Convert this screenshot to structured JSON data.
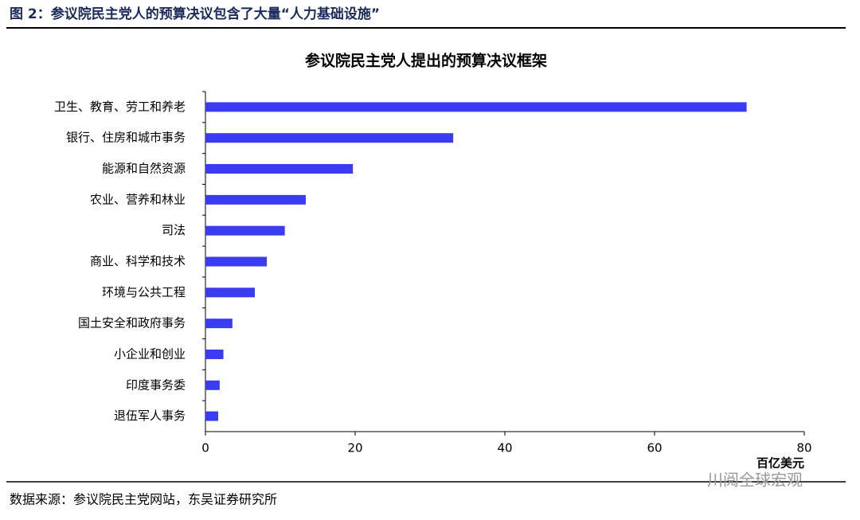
{
  "header": {
    "title": "图 2：参议院民主党人的预算决议包含了大量“人力基础设施”"
  },
  "chart_data": {
    "type": "hbar",
    "title": "参议院民主党人提出的预算决议框架",
    "categories": [
      "卫生、教育、劳工和养老",
      "银行、住房和城市事务",
      "能源和自然资源",
      "农业、营养和林业",
      "司法",
      "商业、科学和技术",
      "环境与公共工程",
      "国土安全和政府事务",
      "小企业和创业",
      "印度事务委",
      "退伍军人事务"
    ],
    "values": [
      72.3,
      33.1,
      19.7,
      13.4,
      10.6,
      8.2,
      6.6,
      3.6,
      2.4,
      1.9,
      1.7
    ],
    "color": "#3b3bf2",
    "xlim": [
      0,
      80
    ],
    "xticks": [
      0,
      20,
      40,
      60,
      80
    ],
    "x_label": "百亿美元"
  },
  "footer": {
    "source": "数据来源：参议院民主党网站，东吴证券研究所",
    "watermark": "川阅全球宏观"
  }
}
